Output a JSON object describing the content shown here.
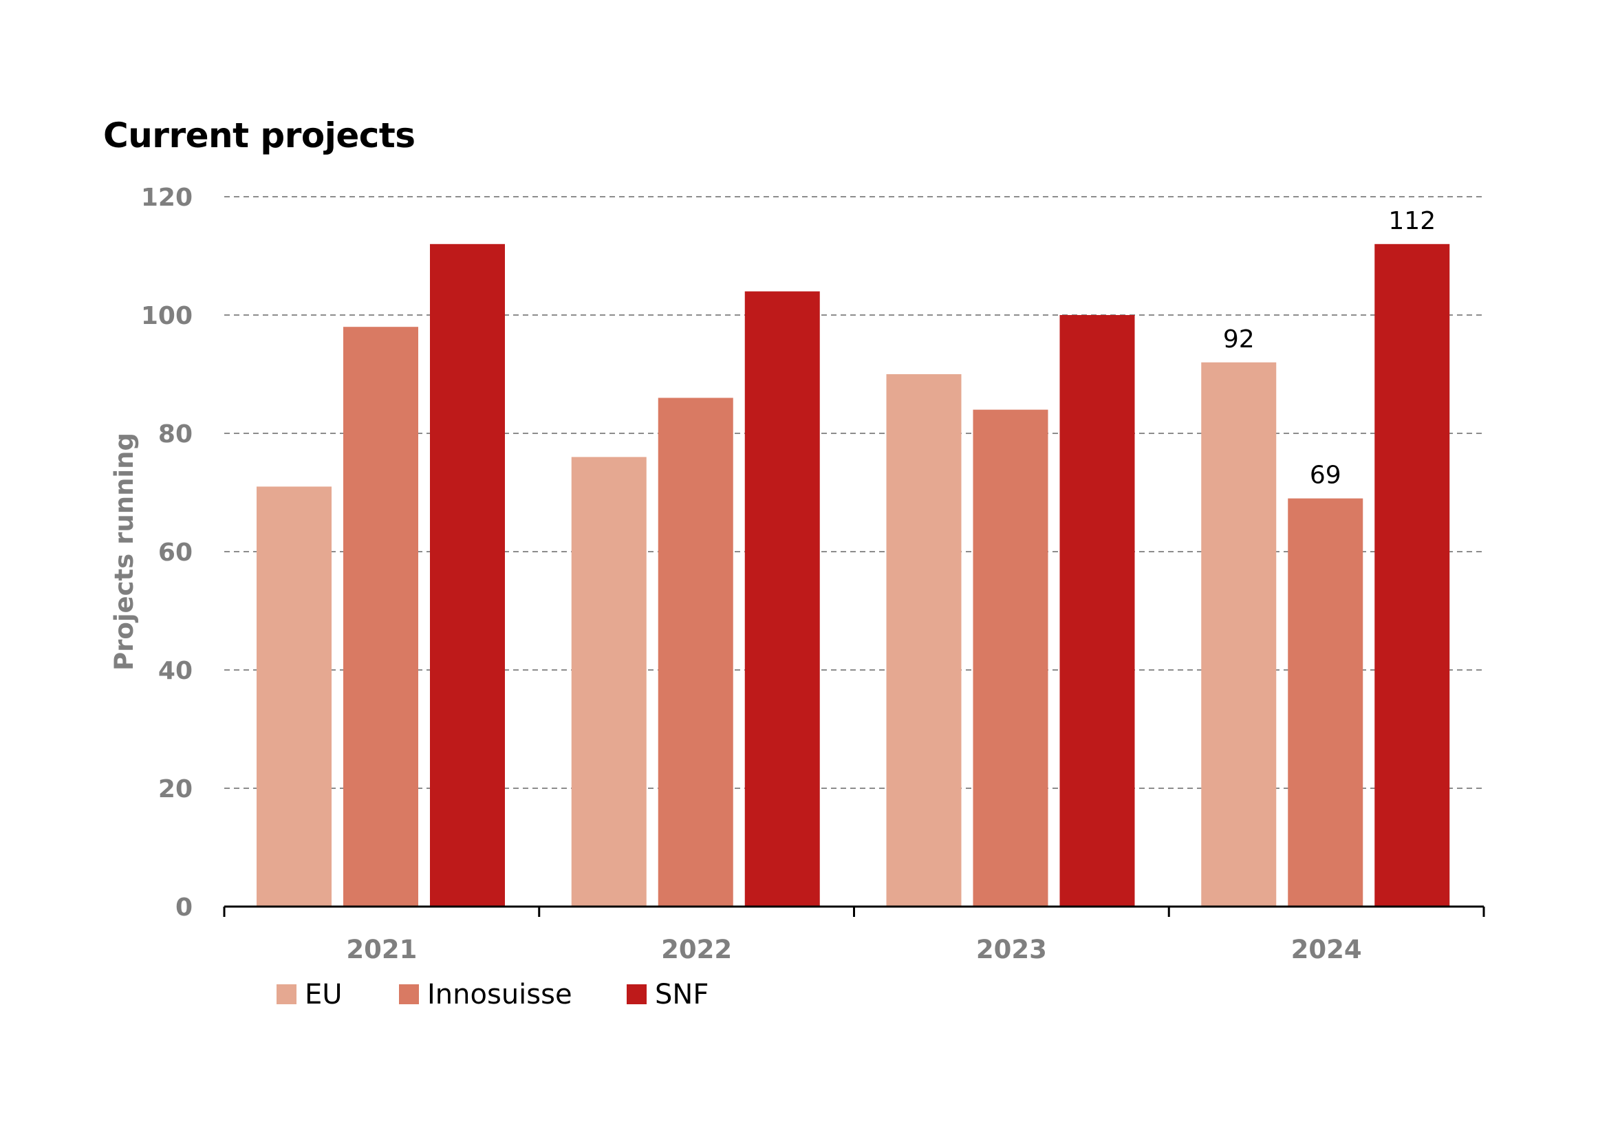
{
  "chart_data": {
    "type": "bar",
    "title": "Current projects",
    "xlabel": "",
    "ylabel": "Projects running",
    "ylim": [
      0,
      120
    ],
    "yticks": [
      0,
      20,
      40,
      60,
      80,
      100,
      120
    ],
    "grid": "horizontal-dashed",
    "legend_position": "bottom-left",
    "categories": [
      "2021",
      "2022",
      "2023",
      "2024"
    ],
    "series": [
      {
        "name": "EU",
        "color": "#e5a891",
        "values": [
          71,
          76,
          90,
          92
        ]
      },
      {
        "name": "Innosuisse",
        "color": "#d97a63",
        "values": [
          98,
          86,
          84,
          69
        ]
      },
      {
        "name": "SNF",
        "color": "#be1a1a",
        "values": [
          112,
          104,
          100,
          112
        ]
      }
    ],
    "data_labels": [
      {
        "series": "EU",
        "category": "2024",
        "text": "92"
      },
      {
        "series": "Innosuisse",
        "category": "2024",
        "text": "69"
      },
      {
        "series": "SNF",
        "category": "2024",
        "text": "112"
      }
    ]
  }
}
